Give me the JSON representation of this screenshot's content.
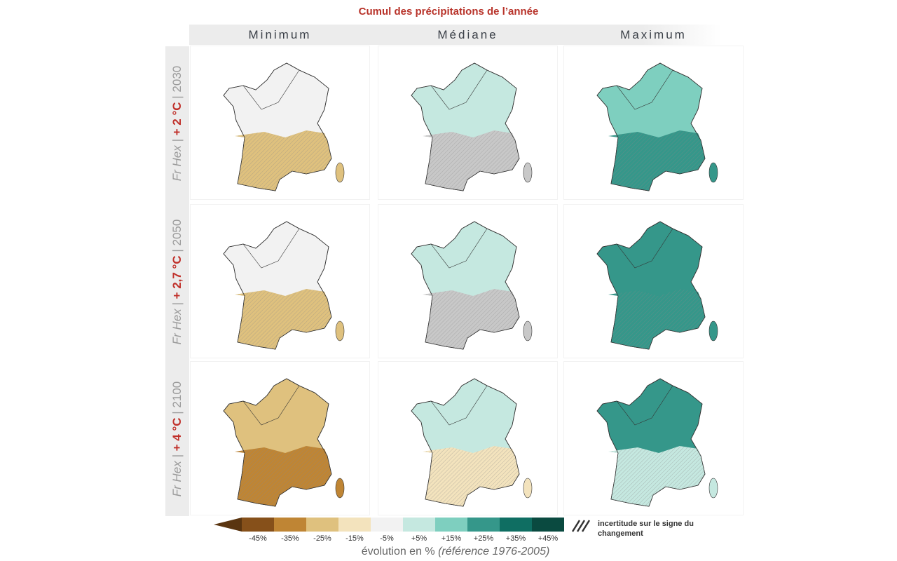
{
  "title": "Cumul des précipitations de l’année",
  "columns": [
    "Minimum",
    "Médiane",
    "Maximum"
  ],
  "rows": [
    {
      "prefix": "Fr Hex | ",
      "temp": "+ 2 °C",
      "year": " | 2030"
    },
    {
      "prefix": "Fr Hex | ",
      "temp": "+ 2,7 °C",
      "year": " | 2050"
    },
    {
      "prefix": "Fr Hex | ",
      "temp": "+ 4 °C",
      "year": " | 2100"
    }
  ],
  "panels": [
    [
      {
        "north": "-5",
        "south": "-25"
      },
      {
        "north": "+5",
        "south": "uncertain"
      },
      {
        "north": "+15",
        "south": "+25"
      }
    ],
    [
      {
        "north": "-5",
        "south": "-25"
      },
      {
        "north": "+5",
        "south": "uncertain"
      },
      {
        "north": "+25",
        "south": "+25"
      }
    ],
    [
      {
        "north": "-25",
        "south": "-35"
      },
      {
        "north": "+5",
        "south": "-15"
      },
      {
        "north": "+25",
        "south": "+5"
      }
    ]
  ],
  "legend": {
    "classes": [
      {
        "key": "-45",
        "label": "-45%",
        "color": "#86501a"
      },
      {
        "key": "-35",
        "label": "-35%",
        "color": "#bf8534"
      },
      {
        "key": "-25",
        "label": "-25%",
        "color": "#dfc17e"
      },
      {
        "key": "-15",
        "label": "-15%",
        "color": "#f3e3bd"
      },
      {
        "key": "-5",
        "label": "-5%",
        "color": "#f2f2f2"
      },
      {
        "key": "+5",
        "label": "+5%",
        "color": "#c5e8e0"
      },
      {
        "key": "+15",
        "label": "+15%",
        "color": "#7ecfbf"
      },
      {
        "key": "+25",
        "label": "+25%",
        "color": "#35978a"
      },
      {
        "key": "+35",
        "label": "+35%",
        "color": "#0f6e62"
      },
      {
        "key": "+45",
        "label": "+45%",
        "color": "#0a4a40"
      }
    ],
    "low_arrow_color": "#5a3510",
    "high_arrow_color": "#0a3f36",
    "uncertain_color": "#c8c8c8",
    "caption_main": "évolution en % ",
    "caption_ref": "(référence 1976-2005)",
    "hatch_label": "incertitude sur le signe du changement"
  }
}
